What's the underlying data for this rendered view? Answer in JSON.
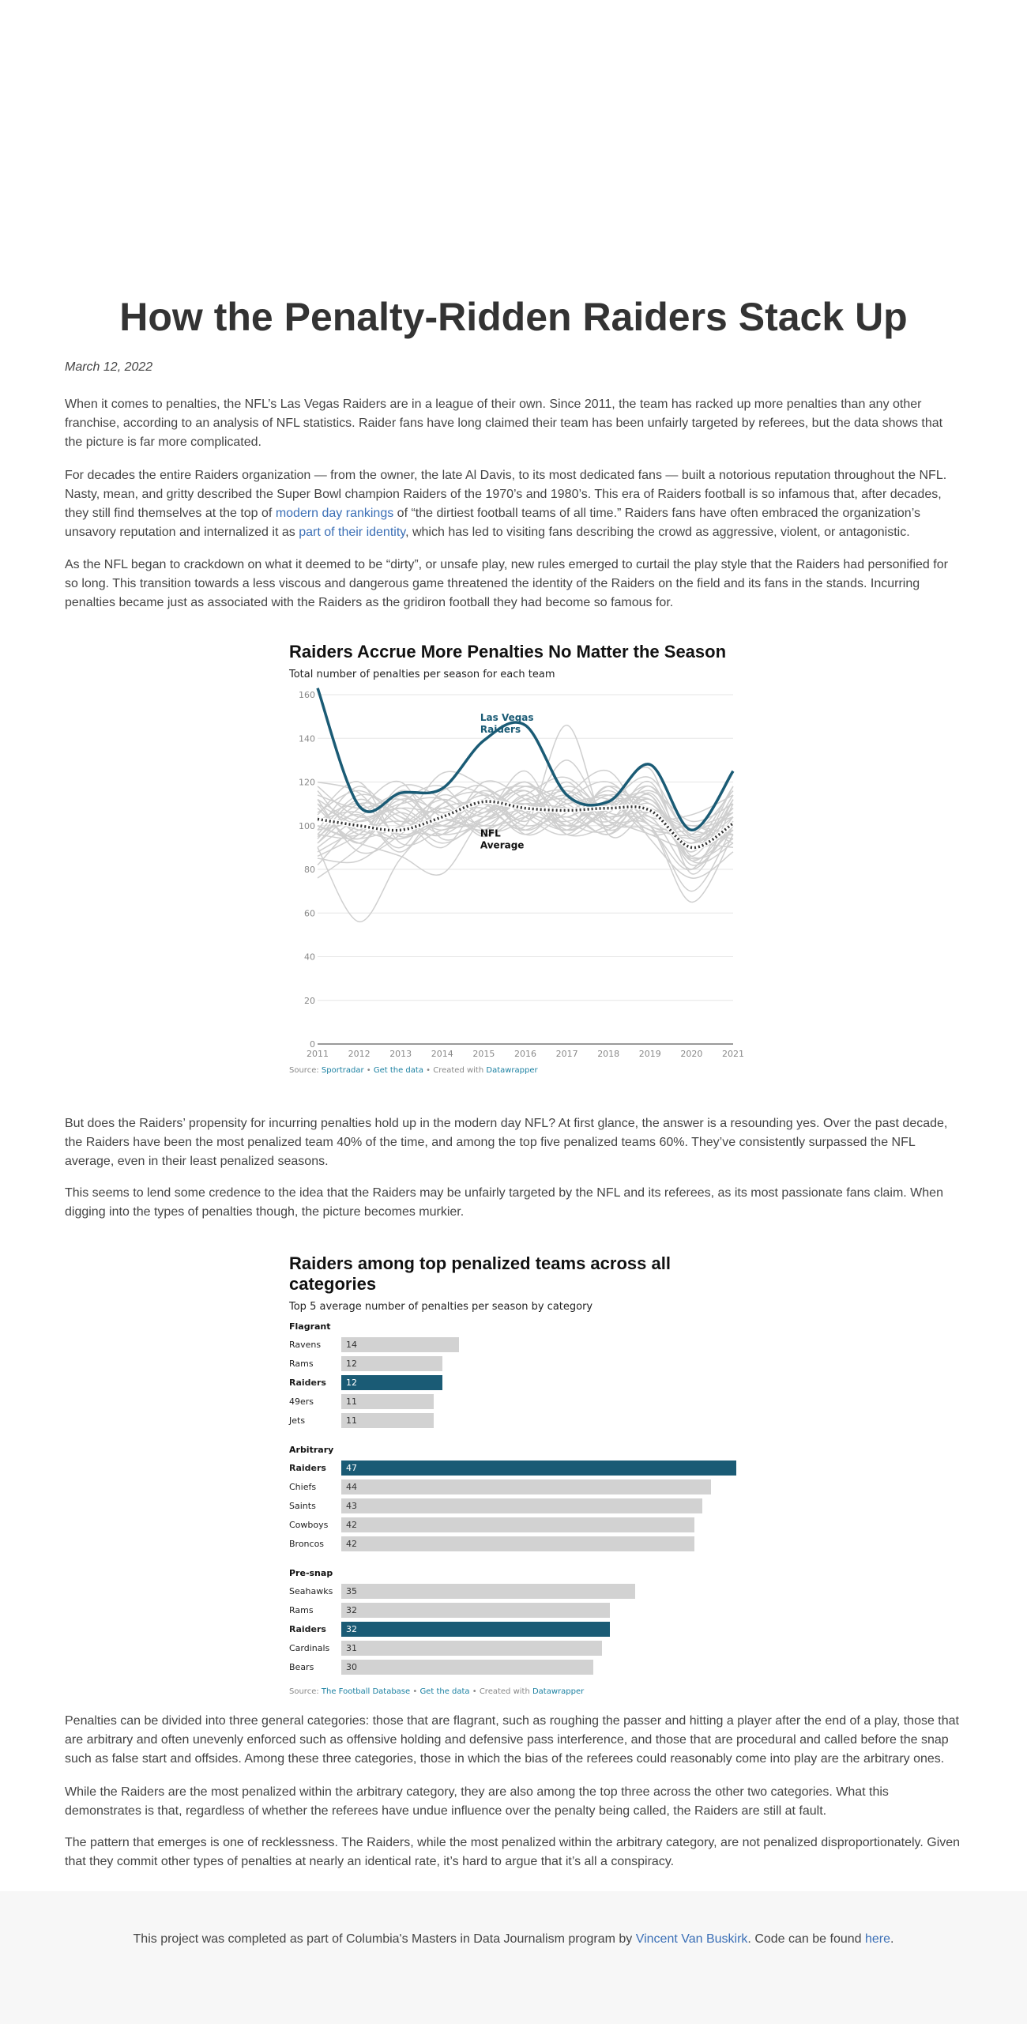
{
  "article": {
    "title": "How the Penalty-Ridden Raiders Stack Up",
    "date": "March 12, 2022",
    "p1": "When it comes to penalties, the NFL’s Las Vegas Raiders are in a league of their own. Since 2011, the team has racked up more penalties than any other franchise, according to an analysis of NFL statistics. Raider fans have long claimed their team has been unfairly targeted by referees, but the data shows that the picture is far more complicated.",
    "p2_a": "For decades the entire Raiders organization — from the owner, the late Al Davis, to its most dedicated fans — built a notorious reputation throughout the NFL. Nasty, mean, and gritty described the Super Bowl champion Raiders of the 1970’s and 1980’s. This era of Raiders football is so infamous that, after decades, they still find themselves at the top of ",
    "p2_link1": "modern day rankings",
    "p2_b": " of “the dirtiest football teams of all time.” Raiders fans have often embraced the organization’s unsavory reputation and internalized it as ",
    "p2_link2": "part of their identity",
    "p2_c": ", which has led to visiting fans describing the crowd as aggressive, violent, or antagonistic.",
    "p3": "As the NFL began to crackdown on what it deemed to be “dirty”, or unsafe play, new rules emerged to curtail the play style that the Raiders had personified for so long. This transition towards a less viscous and dangerous game threatened the identity of the Raiders on the field and its fans in the stands. Incurring penalties became just as associated with the Raiders as the gridiron football they had become so famous for.",
    "p4": "But does the Raiders’ propensity for incurring penalties hold up in the modern day NFL? At first glance, the answer is a resounding yes. Over the past decade, the Raiders have been the most penalized team 40% of the time, and among the top five penalized teams 60%. They’ve consistently surpassed the NFL average, even in their least penalized seasons.",
    "p5": "This seems to lend some credence to the idea that the Raiders may be unfairly targeted by the NFL and its referees, as its most passionate fans claim. When digging into the types of penalties though, the picture becomes murkier.",
    "p6": "Penalties can be divided into three general categories: those that are flagrant, such as roughing the passer and hitting a player after the end of a play, those that are arbitrary and often unevenly enforced such as offensive holding and defensive pass interference, and those that are procedural and called before the snap such as false start and offsides. Among these three categories, those in which the bias of the referees could reasonably come into play are the arbitrary ones.",
    "p7": "While the Raiders are the most penalized within the arbitrary category, they are also among the top three across the other two categories. What this demonstrates is that, regardless of whether the referees have undue influence over the penalty being called, the Raiders are still at fault.",
    "p8": "The pattern that emerges is one of recklessness. The Raiders, while the most penalized within the arbitrary category, are not penalized disproportionately. Given that they commit other types of penalties at nearly an identical rate, it’s hard to argue that it’s all a conspiracy."
  },
  "chart1_meta": {
    "source_prefix": "Source: ",
    "source_name": "Sportradar",
    "sep1": " • ",
    "get_data": "Get the data",
    "sep2": " • Created with ",
    "tool": "Datawrapper"
  },
  "chart2_meta": {
    "source_prefix": "Source: ",
    "source_name": "The Football Database",
    "sep1": " • ",
    "get_data": "Get the data",
    "sep2": " • Created with ",
    "tool": "Datawrapper"
  },
  "chart_data": [
    {
      "type": "line",
      "title": "Raiders Accrue More Penalties No Matter the Season",
      "subtitle": "Total number of penalties per season for each team",
      "x": [
        2011,
        2012,
        2013,
        2014,
        2015,
        2016,
        2017,
        2018,
        2019,
        2020,
        2021
      ],
      "ylim": [
        0,
        160
      ],
      "yticks": [
        0,
        20,
        40,
        60,
        80,
        100,
        120,
        140,
        160
      ],
      "grid": true,
      "series": [
        {
          "name": "Las Vegas Raiders",
          "color": "#1a5b75",
          "values": [
            163,
            109,
            115,
            117,
            139,
            146,
            114,
            111,
            128,
            98,
            125
          ]
        },
        {
          "name": "NFL Average",
          "color": "#333333",
          "values": [
            103,
            100,
            98,
            104,
            111,
            108,
            107,
            108,
            107,
            90,
            101
          ]
        }
      ],
      "other_teams": [
        [
          95,
          105,
          88,
          110,
          115,
          102,
          120,
          99,
          112,
          85,
          98
        ],
        [
          88,
          98,
          102,
          96,
          120,
          112,
          100,
          118,
          106,
          92,
          104
        ],
        [
          110,
          92,
          114,
          100,
          104,
          125,
          96,
          110,
          122,
          95,
          108
        ],
        [
          76,
          90,
          110,
          118,
          98,
          104,
          130,
          102,
          98,
          80,
          112
        ],
        [
          120,
          115,
          95,
          105,
          108,
          98,
          114,
          125,
          100,
          100,
          96
        ],
        [
          92,
          110,
          104,
          90,
          112,
          118,
          108,
          96,
          115,
          88,
          118
        ],
        [
          100,
          96,
          118,
          112,
          95,
          110,
          104,
          114,
          110,
          94,
          90
        ],
        [
          85,
          84,
          100,
          124,
          118,
          106,
          98,
          108,
          126,
          78,
          110
        ],
        [
          105,
          120,
          92,
          98,
          102,
          114,
          122,
          104,
          96,
          90,
          102
        ],
        [
          98,
          102,
          108,
          106,
          110,
          96,
          112,
          120,
          104,
          105,
          114
        ],
        [
          112,
          88,
          96,
          114,
          106,
          120,
          102,
          98,
          118,
          86,
          94
        ],
        [
          90,
          56,
          85,
          102,
          98,
          108,
          116,
          106,
          100,
          65,
          96
        ],
        [
          114,
          108,
          112,
          100,
          116,
          104,
          96,
          112,
          108,
          100,
          106
        ],
        [
          96,
          114,
          106,
          92,
          104,
          118,
          110,
          100,
          114,
          82,
          100
        ],
        [
          82,
          100,
          94,
          108,
          110,
          100,
          146,
          96,
          106,
          92,
          108
        ],
        [
          108,
          94,
          116,
          104,
          100,
          112,
          104,
          116,
          102,
          96,
          116
        ],
        [
          102,
          106,
          90,
          116,
          114,
          98,
          108,
          102,
          120,
          84,
          92
        ],
        [
          94,
          112,
          100,
          96,
          108,
          116,
          100,
          110,
          98,
          98,
          104
        ],
        [
          118,
          104,
          110,
          112,
          96,
          106,
          114,
          104,
          112,
          90,
          98
        ],
        [
          100,
          92,
          86,
          78,
          104,
          110,
          98,
          118,
          94,
          76,
          88
        ],
        [
          106,
          116,
          104,
          100,
          112,
          102,
          118,
          108,
          116,
          102,
          110
        ],
        [
          86,
          96,
          112,
          106,
          98,
          114,
          96,
          100,
          110,
          88,
          114
        ],
        [
          110,
          100,
          98,
          110,
          118,
          96,
          106,
          114,
          100,
          94,
          96
        ],
        [
          92,
          108,
          120,
          94,
          102,
          108,
          112,
          98,
          104,
          80,
          102
        ],
        [
          104,
          98,
          94,
          102,
          106,
          120,
          100,
          106,
          118,
          96,
          106
        ],
        [
          98,
          118,
          102,
          108,
          100,
          104,
          110,
          112,
          96,
          100,
          92
        ],
        [
          112,
          102,
          108,
          98,
          110,
          100,
          104,
          96,
          108,
          86,
          112
        ],
        [
          96,
          94,
          100,
          112,
          104,
          112,
          116,
          102,
          100,
          70,
          100
        ],
        [
          102,
          110,
          96,
          104,
          114,
          106,
          102,
          110,
          112,
          92,
          118
        ],
        [
          90,
          104,
          114,
          100,
          106,
          110,
          108,
          104,
          106,
          98,
          94
        ],
        [
          116,
          96,
          106,
          96,
          102,
          116,
          98,
          108,
          114,
          84,
          104
        ]
      ],
      "annotations": [
        {
          "text": "Las Vegas\nRaiders",
          "x": 2015,
          "y": 148
        },
        {
          "text": "NFL\nAverage",
          "x": 2015,
          "y": 95
        }
      ]
    },
    {
      "type": "bar",
      "title": "Raiders among top penalized teams across all categories",
      "subtitle": "Top 5 average number of penalties per season by category",
      "xlim": [
        0,
        47
      ],
      "highlight_color": "#1a5b75",
      "base_color": "#d2d2d2",
      "groups": [
        {
          "name": "Flagrant",
          "bars": [
            {
              "team": "Ravens",
              "value": 14
            },
            {
              "team": "Rams",
              "value": 12
            },
            {
              "team": "Raiders",
              "value": 12,
              "highlight": true
            },
            {
              "team": "49ers",
              "value": 11
            },
            {
              "team": "Jets",
              "value": 11
            }
          ]
        },
        {
          "name": "Arbitrary",
          "bars": [
            {
              "team": "Raiders",
              "value": 47,
              "highlight": true
            },
            {
              "team": "Chiefs",
              "value": 44
            },
            {
              "team": "Saints",
              "value": 43
            },
            {
              "team": "Cowboys",
              "value": 42
            },
            {
              "team": "Broncos",
              "value": 42
            }
          ]
        },
        {
          "name": "Pre-snap",
          "bars": [
            {
              "team": "Seahawks",
              "value": 35
            },
            {
              "team": "Rams",
              "value": 32
            },
            {
              "team": "Raiders",
              "value": 32,
              "highlight": true
            },
            {
              "team": "Cardinals",
              "value": 31
            },
            {
              "team": "Bears",
              "value": 30
            }
          ]
        }
      ]
    }
  ],
  "footer": {
    "text_a": "This project was completed as part of Columbia's Masters in Data Journalism program by ",
    "author": "Vincent Van Buskirk",
    "text_b": ". Code can be found ",
    "code_link": "here",
    "text_c": "."
  }
}
